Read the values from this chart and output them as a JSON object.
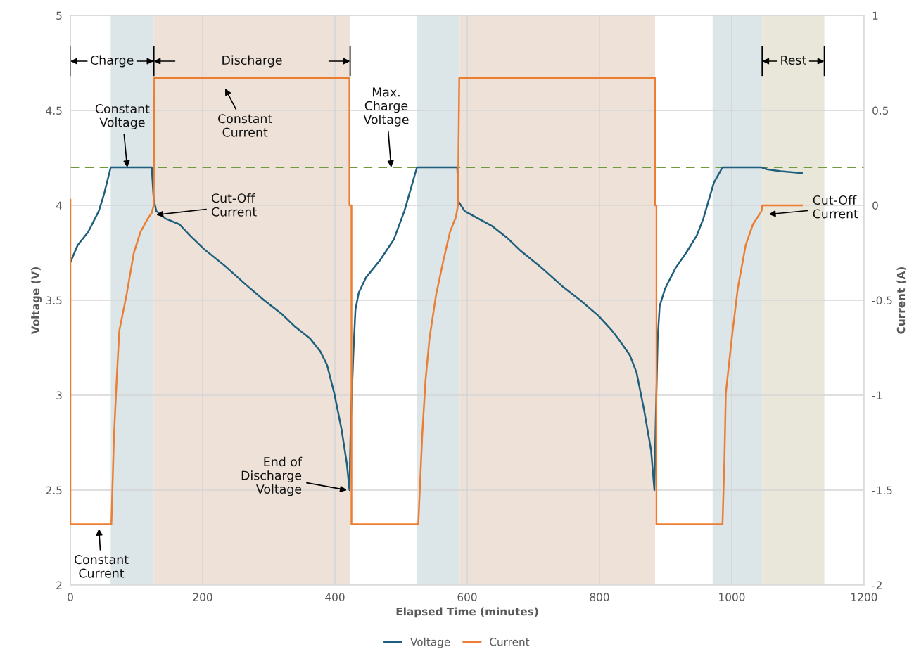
{
  "chart_data": {
    "type": "line",
    "xlabel": "Elapsed Time (minutes)",
    "ylabel": "Voltage (V)",
    "y2label": "Current (A)",
    "xlim": [
      0,
      1200
    ],
    "xticks": [
      0,
      200,
      400,
      600,
      800,
      1000,
      1200
    ],
    "ylim": [
      2,
      5
    ],
    "yticks": [
      2,
      2.5,
      3,
      3.5,
      4,
      4.5,
      5
    ],
    "y2lim": [
      -2,
      1
    ],
    "y2ticks": [
      -2,
      -1.5,
      -1,
      -0.5,
      0,
      0.5,
      1
    ],
    "grid": true,
    "legend": "bottom",
    "marker": "none",
    "line_style": "solid",
    "series": [
      {
        "name": "Voltage",
        "color": "#1d5f7c",
        "x": [
          0,
          11,
          27,
          43,
          51,
          61,
          123,
          126,
          130,
          144,
          165,
          181,
          202,
          234,
          266,
          293,
          319,
          340,
          362,
          378,
          388,
          399,
          410,
          418,
          422,
          424,
          428,
          431,
          436,
          447,
          468,
          489,
          505,
          524,
          585,
          587,
          596,
          617,
          638,
          660,
          681,
          713,
          745,
          771,
          798,
          819,
          830,
          846,
          856,
          867,
          878,
          883,
          885,
          888,
          891,
          899,
          915,
          931,
          947,
          957,
          973,
          986,
          1045,
          1053,
          1074,
          1106
        ],
        "values": [
          3.7,
          3.79,
          3.86,
          3.97,
          4.06,
          4.2,
          4.2,
          4.03,
          3.97,
          3.93,
          3.9,
          3.84,
          3.77,
          3.68,
          3.58,
          3.5,
          3.43,
          3.36,
          3.3,
          3.23,
          3.16,
          3.01,
          2.82,
          2.64,
          2.5,
          2.86,
          3.23,
          3.45,
          3.54,
          3.62,
          3.71,
          3.82,
          3.97,
          4.2,
          4.2,
          4.02,
          3.97,
          3.93,
          3.89,
          3.83,
          3.76,
          3.67,
          3.57,
          3.5,
          3.42,
          3.34,
          3.29,
          3.21,
          3.12,
          2.93,
          2.71,
          2.5,
          2.86,
          3.3,
          3.47,
          3.56,
          3.67,
          3.75,
          3.84,
          3.93,
          4.12,
          4.2,
          4.2,
          4.19,
          4.18,
          4.17
        ]
      },
      {
        "name": "Current",
        "color": "#ed7d31",
        "axis": "y2",
        "x": [
          0,
          0,
          62,
          66,
          70,
          74,
          85,
          96,
          106,
          117,
          123,
          126,
          127,
          422,
          422,
          425,
          425,
          526,
          532,
          537,
          543,
          553,
          564,
          574,
          583,
          586,
          588,
          884,
          884,
          886,
          886,
          986,
          989,
          991,
          1000,
          1009,
          1021,
          1032,
          1045,
          1046,
          1106
        ],
        "values": [
          0.03,
          -1.68,
          -1.68,
          -1.21,
          -0.92,
          -0.66,
          -0.47,
          -0.25,
          -0.14,
          -0.07,
          -0.04,
          0,
          0.67,
          0.67,
          0,
          0,
          -1.68,
          -1.68,
          -1.21,
          -0.92,
          -0.7,
          -0.47,
          -0.29,
          -0.14,
          -0.06,
          0,
          0.67,
          0.67,
          0,
          0,
          -1.68,
          -1.68,
          -1.33,
          -0.99,
          -0.7,
          -0.44,
          -0.21,
          -0.1,
          -0.03,
          0,
          0
        ]
      }
    ],
    "ref_lines": [
      {
        "axis": "y",
        "value": 4.2,
        "color": "#6e9a3c",
        "line_style": "dashed"
      }
    ],
    "bands": [
      {
        "axis": "x",
        "from": 61,
        "to": 126,
        "color": "#dce5e8"
      },
      {
        "axis": "x",
        "from": 126,
        "to": 423,
        "label": "Discharge",
        "color": "#eee1d8"
      },
      {
        "axis": "x",
        "from": 524,
        "to": 589,
        "color": "#dce5e8"
      },
      {
        "axis": "x",
        "from": 589,
        "to": 884,
        "color": "#eee1d8"
      },
      {
        "axis": "x",
        "from": 971,
        "to": 1046,
        "color": "#dce5e8"
      },
      {
        "axis": "x",
        "from": 1046,
        "to": 1140,
        "label": "Rest",
        "color": "#e9e6da"
      }
    ],
    "annotations": [
      {
        "text": "Constant\nVoltage",
        "x": 86,
        "y": 4.2
      },
      "Constant\nCurrent",
      {
        "text": "Cut-Off\nCurrent",
        "x": 130,
        "y": 3.95
      },
      {
        "text": "Max.\nCharge\nVoltage",
        "x": 485,
        "y": 4.2
      },
      {
        "text": "End of\nDischarge\nVoltage",
        "x": 418,
        "y": 2.5
      },
      "Constant\nCurrent",
      "Cut-Off\nCurrent",
      "Charge"
    ]
  }
}
